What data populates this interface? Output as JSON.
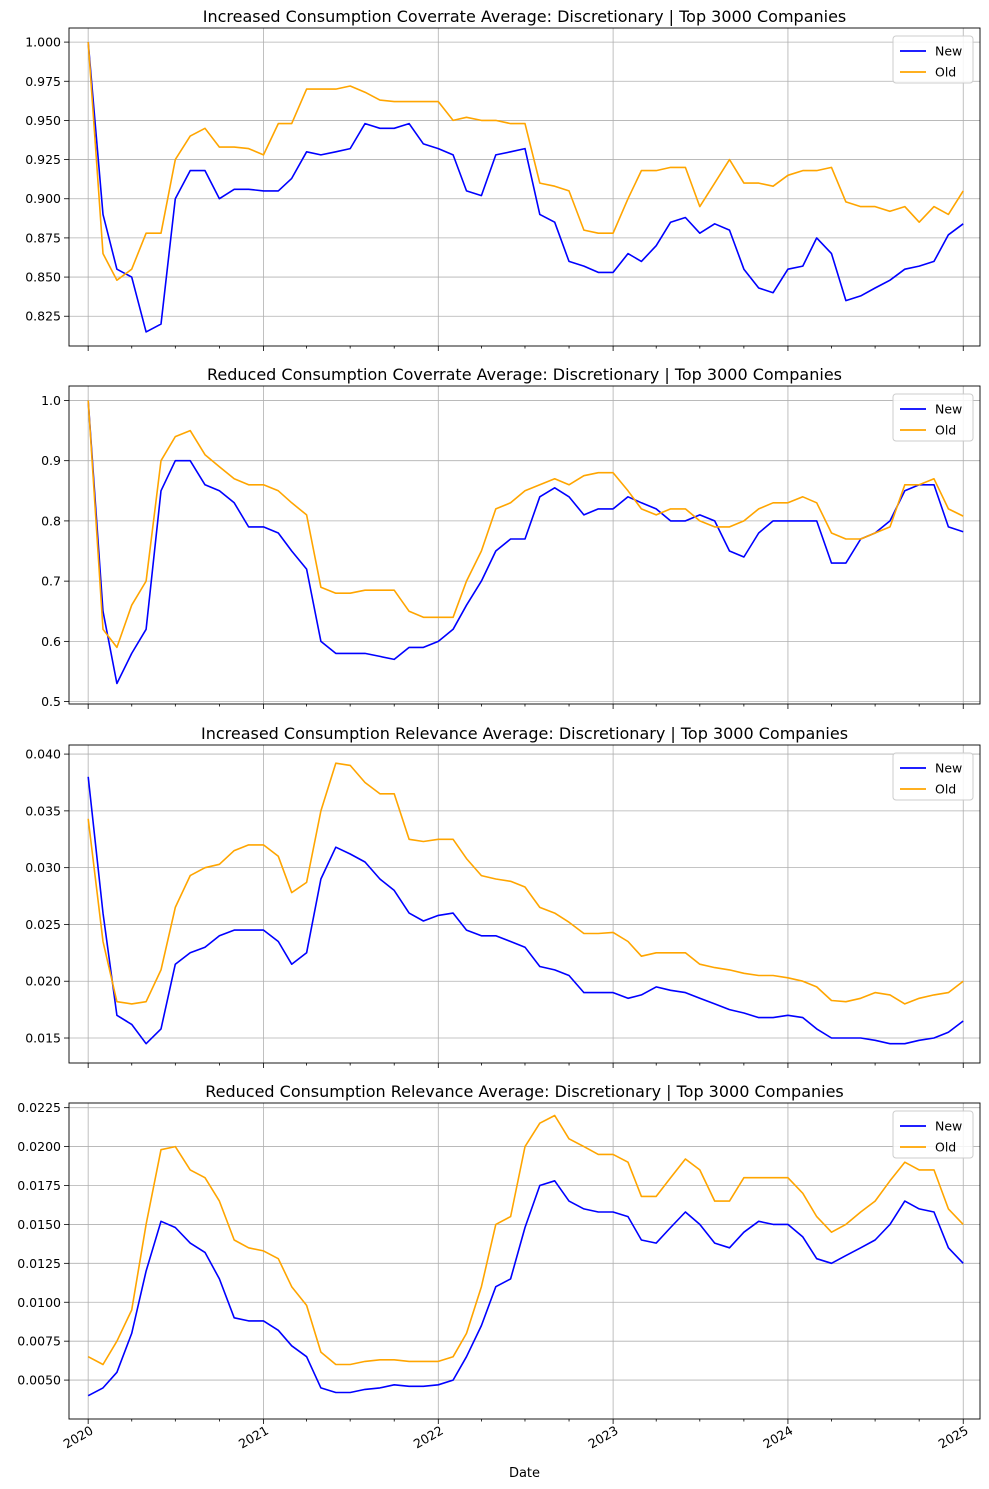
{
  "figure": {
    "xlabel": "Date",
    "x_tick_labels": [
      "2020",
      "2021",
      "2022",
      "2023",
      "2024",
      "2025"
    ]
  },
  "chart_data": [
    {
      "type": "line",
      "title": "Increased Consumption Coverrate Average: Discretionary | Top 3000 Companies",
      "xlabel": "Date",
      "ylabel": "",
      "xlim": [
        "2019-11-22",
        "2025-02-05"
      ],
      "ylim": [
        0.806,
        1.009
      ],
      "x_ticks": [
        "2020-01-01",
        "2021-01-01",
        "2022-01-01",
        "2023-01-01",
        "2024-01-01",
        "2025-01-01"
      ],
      "x_tick_labels": [
        "2020",
        "2021",
        "2022",
        "2023",
        "2024",
        "2025"
      ],
      "y_ticks": [
        0.825,
        0.85,
        0.875,
        0.9,
        0.925,
        0.95,
        0.975,
        1.0
      ],
      "y_tick_labels": [
        "0.825",
        "0.850",
        "0.875",
        "0.900",
        "0.925",
        "0.950",
        "0.975",
        "1.000"
      ],
      "grid": true,
      "legend": "top-right",
      "x": [
        "2020-01-01",
        "2020-02-01",
        "2020-03-01",
        "2020-04-01",
        "2020-05-01",
        "2020-06-01",
        "2020-07-01",
        "2020-08-01",
        "2020-09-01",
        "2020-10-01",
        "2020-11-01",
        "2020-12-01",
        "2021-01-01",
        "2021-02-01",
        "2021-03-01",
        "2021-04-01",
        "2021-05-01",
        "2021-06-01",
        "2021-07-01",
        "2021-08-01",
        "2021-09-01",
        "2021-10-01",
        "2021-11-01",
        "2021-12-01",
        "2022-01-01",
        "2022-02-01",
        "2022-03-01",
        "2022-04-01",
        "2022-05-01",
        "2022-06-01",
        "2022-07-01",
        "2022-08-01",
        "2022-09-01",
        "2022-10-01",
        "2022-11-01",
        "2022-12-01",
        "2023-01-01",
        "2023-02-01",
        "2023-03-01",
        "2023-04-01",
        "2023-05-01",
        "2023-06-01",
        "2023-07-01",
        "2023-08-01",
        "2023-09-01",
        "2023-10-01",
        "2023-11-01",
        "2023-12-01",
        "2024-01-01",
        "2024-02-01",
        "2024-03-01",
        "2024-04-01",
        "2024-05-01",
        "2024-06-01",
        "2024-07-01",
        "2024-08-01",
        "2024-09-01",
        "2024-10-01",
        "2024-11-01",
        "2024-12-01",
        "2025-01-01"
      ],
      "series": [
        {
          "name": "New",
          "color": "#0000ff",
          "values": [
            1.0,
            0.89,
            0.855,
            0.85,
            0.815,
            0.82,
            0.9,
            0.918,
            0.918,
            0.9,
            0.906,
            0.906,
            0.905,
            0.905,
            0.913,
            0.93,
            0.928,
            0.93,
            0.932,
            0.948,
            0.945,
            0.945,
            0.948,
            0.935,
            0.932,
            0.928,
            0.905,
            0.902,
            0.928,
            0.93,
            0.932,
            0.89,
            0.885,
            0.86,
            0.857,
            0.853,
            0.853,
            0.865,
            0.86,
            0.87,
            0.885,
            0.888,
            0.878,
            0.884,
            0.88,
            0.855,
            0.843,
            0.84,
            0.855,
            0.857,
            0.875,
            0.865,
            0.835,
            0.838,
            0.843,
            0.848,
            0.855,
            0.857,
            0.86,
            0.877,
            0.884
          ]
        },
        {
          "name": "Old",
          "color": "#ffa500",
          "values": [
            1.0,
            0.865,
            0.848,
            0.855,
            0.878,
            0.878,
            0.925,
            0.94,
            0.945,
            0.933,
            0.933,
            0.932,
            0.928,
            0.948,
            0.948,
            0.97,
            0.97,
            0.97,
            0.972,
            0.968,
            0.963,
            0.962,
            0.962,
            0.962,
            0.962,
            0.95,
            0.952,
            0.95,
            0.95,
            0.948,
            0.948,
            0.91,
            0.908,
            0.905,
            0.88,
            0.878,
            0.878,
            0.9,
            0.918,
            0.918,
            0.92,
            0.92,
            0.895,
            0.91,
            0.925,
            0.91,
            0.91,
            0.908,
            0.915,
            0.918,
            0.918,
            0.92,
            0.898,
            0.895,
            0.895,
            0.892,
            0.895,
            0.885,
            0.895,
            0.89,
            0.905
          ]
        }
      ]
    },
    {
      "type": "line",
      "title": "Reduced Consumption Coverrate Average: Discretionary | Top 3000 Companies",
      "xlabel": "Date",
      "ylabel": "",
      "xlim": [
        "2019-11-22",
        "2025-02-05"
      ],
      "ylim": [
        0.496,
        1.024
      ],
      "x_ticks": [
        "2020-01-01",
        "2021-01-01",
        "2022-01-01",
        "2023-01-01",
        "2024-01-01",
        "2025-01-01"
      ],
      "x_tick_labels": [
        "2020",
        "2021",
        "2022",
        "2023",
        "2024",
        "2025"
      ],
      "y_ticks": [
        0.5,
        0.6,
        0.7,
        0.8,
        0.9,
        1.0
      ],
      "y_tick_labels": [
        "0.5",
        "0.6",
        "0.7",
        "0.8",
        "0.9",
        "1.0"
      ],
      "grid": true,
      "legend": "top-right",
      "x": [
        "2020-01-01",
        "2020-02-01",
        "2020-03-01",
        "2020-04-01",
        "2020-05-01",
        "2020-06-01",
        "2020-07-01",
        "2020-08-01",
        "2020-09-01",
        "2020-10-01",
        "2020-11-01",
        "2020-12-01",
        "2021-01-01",
        "2021-02-01",
        "2021-03-01",
        "2021-04-01",
        "2021-05-01",
        "2021-06-01",
        "2021-07-01",
        "2021-08-01",
        "2021-09-01",
        "2021-10-01",
        "2021-11-01",
        "2021-12-01",
        "2022-01-01",
        "2022-02-01",
        "2022-03-01",
        "2022-04-01",
        "2022-05-01",
        "2022-06-01",
        "2022-07-01",
        "2022-08-01",
        "2022-09-01",
        "2022-10-01",
        "2022-11-01",
        "2022-12-01",
        "2023-01-01",
        "2023-02-01",
        "2023-03-01",
        "2023-04-01",
        "2023-05-01",
        "2023-06-01",
        "2023-07-01",
        "2023-08-01",
        "2023-09-01",
        "2023-10-01",
        "2023-11-01",
        "2023-12-01",
        "2024-01-01",
        "2024-02-01",
        "2024-03-01",
        "2024-04-01",
        "2024-05-01",
        "2024-06-01",
        "2024-07-01",
        "2024-08-01",
        "2024-09-01",
        "2024-10-01",
        "2024-11-01",
        "2024-12-01",
        "2025-01-01"
      ],
      "series": [
        {
          "name": "New",
          "color": "#0000ff",
          "values": [
            1.0,
            0.65,
            0.53,
            0.58,
            0.62,
            0.85,
            0.9,
            0.9,
            0.86,
            0.85,
            0.83,
            0.79,
            0.79,
            0.78,
            0.75,
            0.72,
            0.6,
            0.58,
            0.58,
            0.58,
            0.575,
            0.57,
            0.59,
            0.59,
            0.6,
            0.62,
            0.66,
            0.7,
            0.75,
            0.77,
            0.77,
            0.84,
            0.855,
            0.84,
            0.81,
            0.82,
            0.82,
            0.84,
            0.83,
            0.82,
            0.8,
            0.8,
            0.81,
            0.8,
            0.75,
            0.74,
            0.78,
            0.8,
            0.8,
            0.8,
            0.8,
            0.73,
            0.73,
            0.77,
            0.78,
            0.8,
            0.85,
            0.86,
            0.86,
            0.79,
            0.782
          ]
        },
        {
          "name": "Old",
          "color": "#ffa500",
          "values": [
            1.0,
            0.62,
            0.59,
            0.66,
            0.7,
            0.9,
            0.94,
            0.95,
            0.91,
            0.89,
            0.87,
            0.86,
            0.86,
            0.85,
            0.83,
            0.81,
            0.69,
            0.68,
            0.68,
            0.685,
            0.685,
            0.685,
            0.65,
            0.64,
            0.64,
            0.64,
            0.7,
            0.75,
            0.82,
            0.83,
            0.85,
            0.86,
            0.87,
            0.86,
            0.875,
            0.88,
            0.88,
            0.85,
            0.82,
            0.81,
            0.82,
            0.82,
            0.8,
            0.79,
            0.79,
            0.8,
            0.82,
            0.83,
            0.83,
            0.84,
            0.83,
            0.78,
            0.77,
            0.77,
            0.78,
            0.79,
            0.86,
            0.86,
            0.87,
            0.82,
            0.808
          ]
        }
      ]
    },
    {
      "type": "line",
      "title": "Increased Consumption Relevance Average: Discretionary | Top 3000 Companies",
      "xlabel": "Date",
      "ylabel": "",
      "xlim": [
        "2019-11-22",
        "2025-02-05"
      ],
      "ylim": [
        0.0128,
        0.0408
      ],
      "x_ticks": [
        "2020-01-01",
        "2021-01-01",
        "2022-01-01",
        "2023-01-01",
        "2024-01-01",
        "2025-01-01"
      ],
      "x_tick_labels": [
        "2020",
        "2021",
        "2022",
        "2023",
        "2024",
        "2025"
      ],
      "y_ticks": [
        0.015,
        0.02,
        0.025,
        0.03,
        0.035,
        0.04
      ],
      "y_tick_labels": [
        "0.015",
        "0.020",
        "0.025",
        "0.030",
        "0.035",
        "0.040"
      ],
      "grid": true,
      "legend": "top-right",
      "x": [
        "2020-01-01",
        "2020-02-01",
        "2020-03-01",
        "2020-04-01",
        "2020-05-01",
        "2020-06-01",
        "2020-07-01",
        "2020-08-01",
        "2020-09-01",
        "2020-10-01",
        "2020-11-01",
        "2020-12-01",
        "2021-01-01",
        "2021-02-01",
        "2021-03-01",
        "2021-04-01",
        "2021-05-01",
        "2021-06-01",
        "2021-07-01",
        "2021-08-01",
        "2021-09-01",
        "2021-10-01",
        "2021-11-01",
        "2021-12-01",
        "2022-01-01",
        "2022-02-01",
        "2022-03-01",
        "2022-04-01",
        "2022-05-01",
        "2022-06-01",
        "2022-07-01",
        "2022-08-01",
        "2022-09-01",
        "2022-10-01",
        "2022-11-01",
        "2022-12-01",
        "2023-01-01",
        "2023-02-01",
        "2023-03-01",
        "2023-04-01",
        "2023-05-01",
        "2023-06-01",
        "2023-07-01",
        "2023-08-01",
        "2023-09-01",
        "2023-10-01",
        "2023-11-01",
        "2023-12-01",
        "2024-01-01",
        "2024-02-01",
        "2024-03-01",
        "2024-04-01",
        "2024-05-01",
        "2024-06-01",
        "2024-07-01",
        "2024-08-01",
        "2024-09-01",
        "2024-10-01",
        "2024-11-01",
        "2024-12-01",
        "2025-01-01"
      ],
      "series": [
        {
          "name": "New",
          "color": "#0000ff",
          "values": [
            0.038,
            0.026,
            0.017,
            0.0162,
            0.0145,
            0.0158,
            0.0215,
            0.0225,
            0.023,
            0.024,
            0.0245,
            0.0245,
            0.0245,
            0.0235,
            0.0215,
            0.0225,
            0.029,
            0.0318,
            0.0312,
            0.0305,
            0.029,
            0.028,
            0.026,
            0.0253,
            0.0258,
            0.026,
            0.0245,
            0.024,
            0.024,
            0.0235,
            0.023,
            0.0213,
            0.021,
            0.0205,
            0.019,
            0.019,
            0.019,
            0.0185,
            0.0188,
            0.0195,
            0.0192,
            0.019,
            0.0185,
            0.018,
            0.0175,
            0.0172,
            0.0168,
            0.0168,
            0.017,
            0.0168,
            0.0158,
            0.015,
            0.015,
            0.015,
            0.0148,
            0.0145,
            0.0145,
            0.0148,
            0.015,
            0.0155,
            0.0165
          ]
        },
        {
          "name": "Old",
          "color": "#ffa500",
          "values": [
            0.0343,
            0.0235,
            0.0182,
            0.018,
            0.0182,
            0.021,
            0.0265,
            0.0293,
            0.03,
            0.0303,
            0.0315,
            0.032,
            0.032,
            0.031,
            0.0278,
            0.0287,
            0.035,
            0.0392,
            0.039,
            0.0375,
            0.0365,
            0.0365,
            0.0325,
            0.0323,
            0.0325,
            0.0325,
            0.0308,
            0.0293,
            0.029,
            0.0288,
            0.0283,
            0.0265,
            0.026,
            0.0252,
            0.0242,
            0.0242,
            0.0243,
            0.0235,
            0.0222,
            0.0225,
            0.0225,
            0.0225,
            0.0215,
            0.0212,
            0.021,
            0.0207,
            0.0205,
            0.0205,
            0.0203,
            0.02,
            0.0195,
            0.0183,
            0.0182,
            0.0185,
            0.019,
            0.0188,
            0.018,
            0.0185,
            0.0188,
            0.019,
            0.02
          ]
        }
      ]
    },
    {
      "type": "line",
      "title": "Reduced Consumption Relevance Average: Discretionary | Top 3000 Companies",
      "xlabel": "Date",
      "ylabel": "",
      "xlim": [
        "2019-11-22",
        "2025-02-05"
      ],
      "ylim": [
        0.0025,
        0.0228
      ],
      "x_ticks": [
        "2020-01-01",
        "2021-01-01",
        "2022-01-01",
        "2023-01-01",
        "2024-01-01",
        "2025-01-01"
      ],
      "x_tick_labels": [
        "2020",
        "2021",
        "2022",
        "2023",
        "2024",
        "2025"
      ],
      "y_ticks": [
        0.005,
        0.0075,
        0.01,
        0.0125,
        0.015,
        0.0175,
        0.02,
        0.0225
      ],
      "y_tick_labels": [
        "0.0050",
        "0.0075",
        "0.0100",
        "0.0125",
        "0.0150",
        "0.0175",
        "0.0200",
        "0.0225"
      ],
      "grid": true,
      "legend": "top-right",
      "x": [
        "2020-01-01",
        "2020-02-01",
        "2020-03-01",
        "2020-04-01",
        "2020-05-01",
        "2020-06-01",
        "2020-07-01",
        "2020-08-01",
        "2020-09-01",
        "2020-10-01",
        "2020-11-01",
        "2020-12-01",
        "2021-01-01",
        "2021-02-01",
        "2021-03-01",
        "2021-04-01",
        "2021-05-01",
        "2021-06-01",
        "2021-07-01",
        "2021-08-01",
        "2021-09-01",
        "2021-10-01",
        "2021-11-01",
        "2021-12-01",
        "2022-01-01",
        "2022-02-01",
        "2022-03-01",
        "2022-04-01",
        "2022-05-01",
        "2022-06-01",
        "2022-07-01",
        "2022-08-01",
        "2022-09-01",
        "2022-10-01",
        "2022-11-01",
        "2022-12-01",
        "2023-01-01",
        "2023-02-01",
        "2023-03-01",
        "2023-04-01",
        "2023-05-01",
        "2023-06-01",
        "2023-07-01",
        "2023-08-01",
        "2023-09-01",
        "2023-10-01",
        "2023-11-01",
        "2023-12-01",
        "2024-01-01",
        "2024-02-01",
        "2024-03-01",
        "2024-04-01",
        "2024-05-01",
        "2024-06-01",
        "2024-07-01",
        "2024-08-01",
        "2024-09-01",
        "2024-10-01",
        "2024-11-01",
        "2024-12-01",
        "2025-01-01"
      ],
      "series": [
        {
          "name": "New",
          "color": "#0000ff",
          "values": [
            0.004,
            0.0045,
            0.0055,
            0.008,
            0.012,
            0.0152,
            0.0148,
            0.0138,
            0.0132,
            0.0115,
            0.009,
            0.0088,
            0.0088,
            0.0082,
            0.0072,
            0.0065,
            0.0045,
            0.0042,
            0.0042,
            0.0044,
            0.0045,
            0.0047,
            0.0046,
            0.0046,
            0.0047,
            0.005,
            0.0065,
            0.0085,
            0.011,
            0.0115,
            0.0148,
            0.0175,
            0.0178,
            0.0165,
            0.016,
            0.0158,
            0.0158,
            0.0155,
            0.014,
            0.0138,
            0.0148,
            0.0158,
            0.015,
            0.0138,
            0.0135,
            0.0145,
            0.0152,
            0.015,
            0.015,
            0.0142,
            0.0128,
            0.0125,
            0.013,
            0.0135,
            0.014,
            0.015,
            0.0165,
            0.016,
            0.0158,
            0.0135,
            0.0125
          ]
        },
        {
          "name": "Old",
          "color": "#ffa500",
          "values": [
            0.0065,
            0.006,
            0.0075,
            0.0095,
            0.015,
            0.0198,
            0.02,
            0.0185,
            0.018,
            0.0165,
            0.014,
            0.0135,
            0.0133,
            0.0128,
            0.011,
            0.0098,
            0.0068,
            0.006,
            0.006,
            0.0062,
            0.0063,
            0.0063,
            0.0062,
            0.0062,
            0.0062,
            0.0065,
            0.008,
            0.011,
            0.015,
            0.0155,
            0.02,
            0.0215,
            0.022,
            0.0205,
            0.02,
            0.0195,
            0.0195,
            0.019,
            0.0168,
            0.0168,
            0.018,
            0.0192,
            0.0185,
            0.0165,
            0.0165,
            0.018,
            0.018,
            0.018,
            0.018,
            0.017,
            0.0155,
            0.0145,
            0.015,
            0.0158,
            0.0165,
            0.0178,
            0.019,
            0.0185,
            0.0185,
            0.016,
            0.015
          ]
        }
      ]
    }
  ]
}
